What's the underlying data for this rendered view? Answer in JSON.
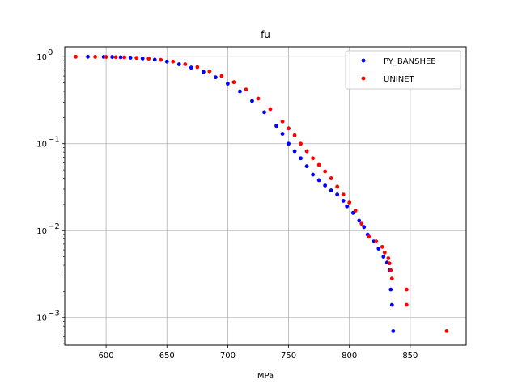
{
  "chart_data": {
    "type": "scatter",
    "title": "fu",
    "xlabel": "MPa",
    "ylabel": "",
    "xlim": [
      566,
      896
    ],
    "ylim": [
      0.00048,
      1.3
    ],
    "yscale": "log",
    "grid": true,
    "legend_position": "top-right",
    "x_ticks": [
      600,
      650,
      700,
      750,
      800,
      850
    ],
    "y_ticks": [
      {
        "value": 0.001,
        "base": "10",
        "exp": "−3"
      },
      {
        "value": 0.01,
        "base": "10",
        "exp": "−2"
      },
      {
        "value": 0.1,
        "base": "10",
        "exp": "−1"
      },
      {
        "value": 1,
        "base": "10",
        "exp": "0"
      }
    ],
    "series": [
      {
        "name": "PY_BANSHEE",
        "color": "#0000ff",
        "points": [
          [
            585,
            0.999
          ],
          [
            598,
            0.997
          ],
          [
            605,
            0.993
          ],
          [
            612,
            0.986
          ],
          [
            620,
            0.975
          ],
          [
            630,
            0.955
          ],
          [
            640,
            0.925
          ],
          [
            650,
            0.88
          ],
          [
            660,
            0.82
          ],
          [
            670,
            0.75
          ],
          [
            680,
            0.67
          ],
          [
            690,
            0.58
          ],
          [
            700,
            0.49
          ],
          [
            710,
            0.4
          ],
          [
            720,
            0.31
          ],
          [
            730,
            0.23
          ],
          [
            740,
            0.16
          ],
          [
            745,
            0.13
          ],
          [
            750,
            0.1
          ],
          [
            755,
            0.082
          ],
          [
            760,
            0.068
          ],
          [
            765,
            0.055
          ],
          [
            770,
            0.044
          ],
          [
            775,
            0.038
          ],
          [
            780,
            0.033
          ],
          [
            785,
            0.029
          ],
          [
            790,
            0.026
          ],
          [
            795,
            0.022
          ],
          [
            798,
            0.019
          ],
          [
            803,
            0.016
          ],
          [
            808,
            0.013
          ],
          [
            812,
            0.011
          ],
          [
            815,
            0.009
          ],
          [
            820,
            0.0075
          ],
          [
            824,
            0.0062
          ],
          [
            828,
            0.005
          ],
          [
            831,
            0.0043
          ],
          [
            833,
            0.0035
          ],
          [
            834,
            0.0021
          ],
          [
            835,
            0.0014
          ],
          [
            836,
            0.0007
          ]
        ]
      },
      {
        "name": "UNINET",
        "color": "#ff0000",
        "points": [
          [
            575,
            0.999
          ],
          [
            591,
            0.997
          ],
          [
            600,
            0.994
          ],
          [
            608,
            0.99
          ],
          [
            615,
            0.984
          ],
          [
            625,
            0.97
          ],
          [
            635,
            0.95
          ],
          [
            645,
            0.92
          ],
          [
            655,
            0.88
          ],
          [
            665,
            0.82
          ],
          [
            675,
            0.76
          ],
          [
            685,
            0.68
          ],
          [
            695,
            0.6
          ],
          [
            705,
            0.51
          ],
          [
            715,
            0.42
          ],
          [
            725,
            0.33
          ],
          [
            735,
            0.25
          ],
          [
            745,
            0.18
          ],
          [
            750,
            0.15
          ],
          [
            755,
            0.125
          ],
          [
            760,
            0.1
          ],
          [
            765,
            0.082
          ],
          [
            770,
            0.068
          ],
          [
            775,
            0.057
          ],
          [
            780,
            0.048
          ],
          [
            785,
            0.04
          ],
          [
            790,
            0.032
          ],
          [
            795,
            0.026
          ],
          [
            800,
            0.021
          ],
          [
            805,
            0.017
          ],
          [
            810,
            0.012
          ],
          [
            816,
            0.0085
          ],
          [
            822,
            0.0075
          ],
          [
            827,
            0.0065
          ],
          [
            829,
            0.0056
          ],
          [
            832,
            0.0048
          ],
          [
            833,
            0.0042
          ],
          [
            834,
            0.0035
          ],
          [
            835,
            0.0028
          ],
          [
            847,
            0.0021
          ],
          [
            847,
            0.0014
          ],
          [
            880,
            0.0007
          ]
        ]
      }
    ]
  }
}
